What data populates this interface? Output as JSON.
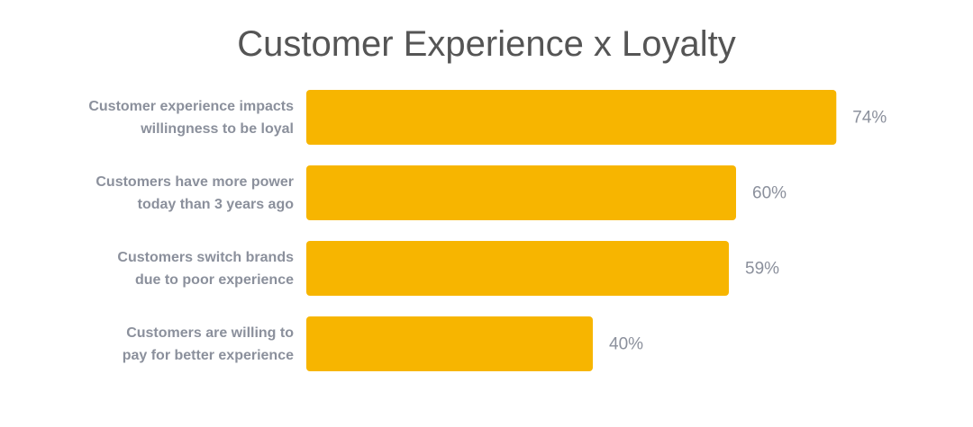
{
  "chart_data": {
    "type": "bar",
    "orientation": "horizontal",
    "title": "Customer Experience x Loyalty",
    "categories": [
      "Customer experience impacts\nwillingness to be loyal",
      "Customers have more power\ntoday than 3 years ago",
      "Customers switch brands\ndue to poor experience",
      "Customers are willing to\npay for better experience"
    ],
    "values": [
      74,
      60,
      59,
      40
    ],
    "value_labels": [
      "74%",
      "60%",
      "59%",
      "40%"
    ],
    "color": "#f7b500"
  }
}
